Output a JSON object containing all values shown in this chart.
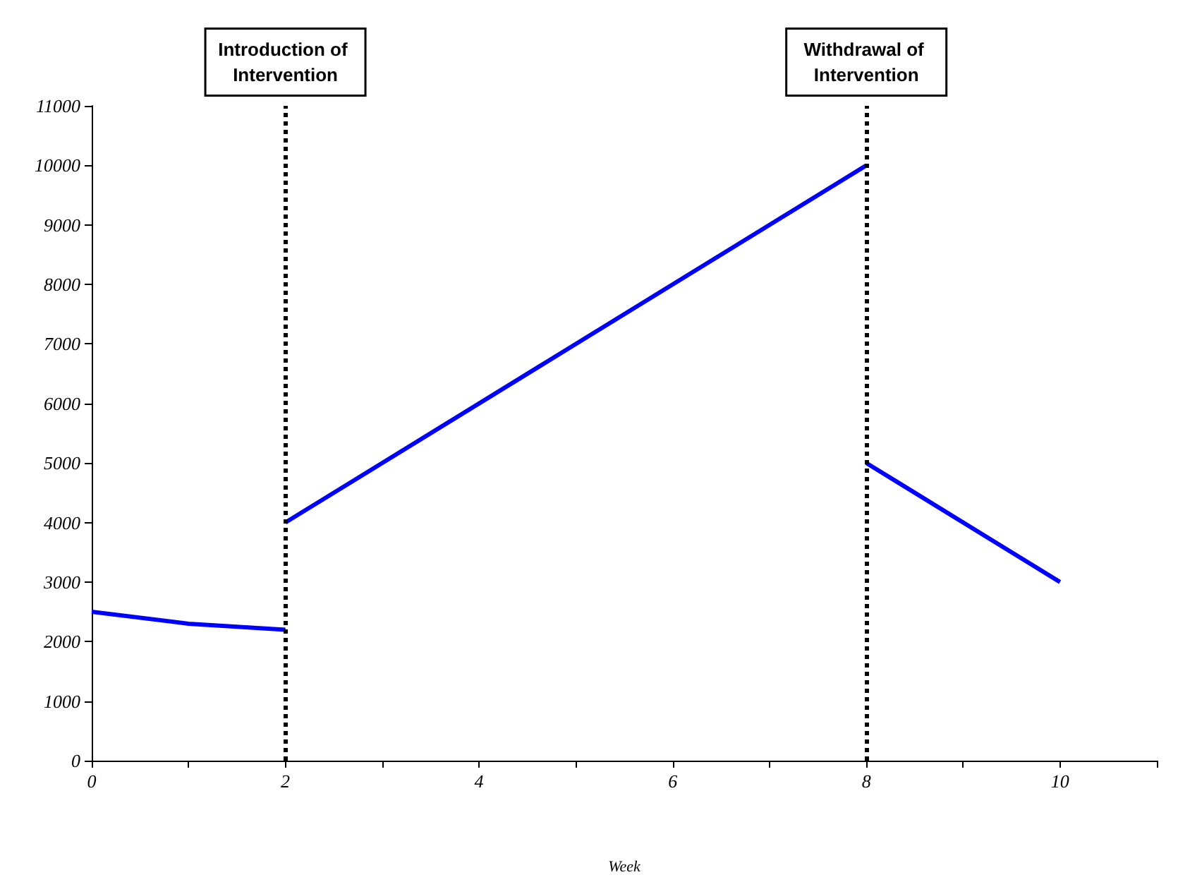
{
  "chart_data": {
    "type": "line",
    "xlabel": "Week",
    "marker": "none",
    "line_style": "solid",
    "xlim": [
      0,
      11
    ],
    "xticks": [
      0,
      {
        "value": 1,
        "label": null
      },
      2,
      {
        "value": 3,
        "label": null
      },
      4,
      {
        "value": 5,
        "label": null
      },
      6,
      {
        "value": 7,
        "label": null
      },
      8,
      {
        "value": 9,
        "label": null
      },
      10,
      {
        "value": 11,
        "label": null
      }
    ],
    "ylim": [
      0,
      11000
    ],
    "yticks": [
      0,
      1000,
      2000,
      3000,
      4000,
      5000,
      6000,
      7000,
      8000,
      9000,
      10000,
      11000
    ],
    "series": [
      {
        "color": "#0000ff",
        "x": [
          0,
          1,
          2
        ],
        "values": [
          2500,
          2300,
          2200
        ]
      },
      {
        "color": "#0000ff",
        "x": [
          2,
          8
        ],
        "values": [
          4000,
          10000
        ]
      },
      {
        "color": "#0000ff",
        "x": [
          8,
          10
        ],
        "values": [
          5000,
          3000
        ]
      }
    ],
    "ref_lines": [
      {
        "axis": "x",
        "value": 2,
        "label": "Introduction of Intervention",
        "color": "#000000",
        "line_style": "dotted"
      },
      {
        "axis": "x",
        "value": 8,
        "label": "Withdrawal of Intervention",
        "color": "#000000",
        "line_style": "dotted"
      }
    ]
  }
}
